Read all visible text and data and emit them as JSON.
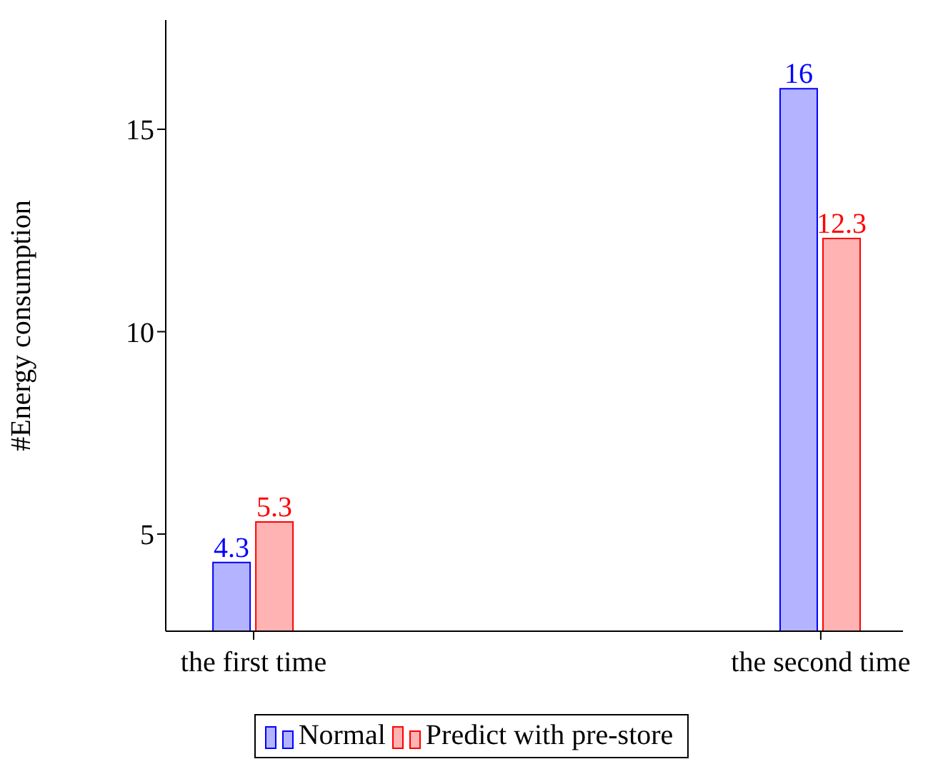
{
  "chart_data": {
    "type": "bar",
    "ylabel": "#Energy consumption",
    "categories": [
      "the first time",
      "the second time"
    ],
    "series": [
      {
        "name": "Normal",
        "color": "#0000ff",
        "values": [
          4.3,
          16
        ]
      },
      {
        "name": "Predict with pre-store",
        "color": "#ff0000",
        "values": [
          5.3,
          12.3
        ]
      }
    ],
    "ylim": [
      2.6,
      17.7
    ],
    "yticks": [
      5,
      10,
      15
    ],
    "data_labels": true,
    "legend": "bottom",
    "grid": false
  }
}
